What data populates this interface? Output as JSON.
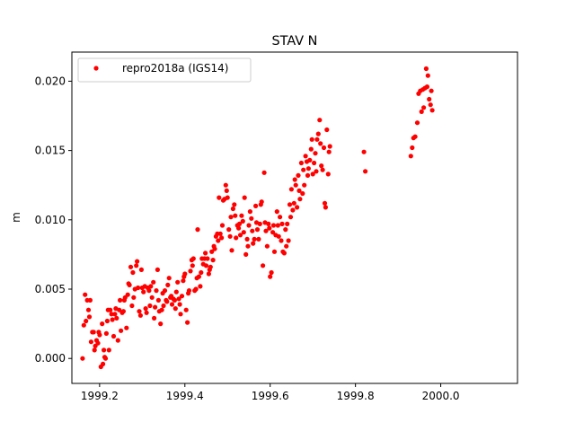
{
  "chart_data": {
    "type": "scatter",
    "title": "STAV N",
    "xlabel": "",
    "ylabel": "m",
    "xlim": [
      1999.135,
      2000.18
    ],
    "ylim": [
      -0.0018,
      0.0221
    ],
    "xticks": [
      1999.2,
      1999.4,
      1999.6,
      1999.8,
      2000.0
    ],
    "xtick_labels": [
      "1999.2",
      "1999.4",
      "1999.6",
      "1999.8",
      "2000.0"
    ],
    "yticks": [
      0.0,
      0.005,
      0.01,
      0.015,
      0.02
    ],
    "ytick_labels": [
      "0.000",
      "0.005",
      "0.010",
      "0.015",
      "0.020"
    ],
    "grid": false,
    "legend": {
      "position": "top-left"
    },
    "series": [
      {
        "name": "repro2018a (IGS14)",
        "color": "#ff0000",
        "marker": "circle",
        "points": [
          [
            1999.16,
            0.0
          ],
          [
            1999.163,
            0.0024
          ],
          [
            1999.166,
            0.0046
          ],
          [
            1999.168,
            0.0027
          ],
          [
            1999.171,
            0.0042
          ],
          [
            1999.174,
            0.0035
          ],
          [
            1999.176,
            0.003
          ],
          [
            1999.178,
            0.0042
          ],
          [
            1999.18,
            0.0012
          ],
          [
            1999.183,
            0.0019
          ],
          [
            1999.186,
            0.0019
          ],
          [
            1999.188,
            0.0006
          ],
          [
            1999.19,
            0.0009
          ],
          [
            1999.193,
            0.0013
          ],
          [
            1999.196,
            0.0011
          ],
          [
            1999.198,
            0.0019
          ],
          [
            1999.2,
            0.0017
          ],
          [
            1999.203,
            -0.0006
          ],
          [
            1999.206,
            0.0025
          ],
          [
            1999.208,
            -0.0004
          ],
          [
            1999.21,
            0.0006
          ],
          [
            1999.212,
            0.0001
          ],
          [
            1999.214,
            0.0
          ],
          [
            1999.216,
            0.0018
          ],
          [
            1999.218,
            0.0027
          ],
          [
            1999.22,
            0.0035
          ],
          [
            1999.222,
            0.0006
          ],
          [
            1999.225,
            0.0035
          ],
          [
            1999.228,
            0.0032
          ],
          [
            1999.23,
            0.0028
          ],
          [
            1999.233,
            0.0016
          ],
          [
            1999.236,
            0.0032
          ],
          [
            1999.238,
            0.0036
          ],
          [
            1999.24,
            0.0029
          ],
          [
            1999.243,
            0.0013
          ],
          [
            1999.246,
            0.0035
          ],
          [
            1999.248,
            0.0042
          ],
          [
            1999.25,
            0.002
          ],
          [
            1999.253,
            0.0033
          ],
          [
            1999.256,
            0.0034
          ],
          [
            1999.258,
            0.0042
          ],
          [
            1999.26,
            0.0044
          ],
          [
            1999.263,
            0.0022
          ],
          [
            1999.266,
            0.0046
          ],
          [
            1999.268,
            0.0054
          ],
          [
            1999.27,
            0.0053
          ],
          [
            1999.273,
            0.0066
          ],
          [
            1999.276,
            0.0038
          ],
          [
            1999.278,
            0.0062
          ],
          [
            1999.28,
            0.0044
          ],
          [
            1999.283,
            0.005
          ],
          [
            1999.286,
            0.0067
          ],
          [
            1999.288,
            0.007
          ],
          [
            1999.29,
            0.0051
          ],
          [
            1999.293,
            0.0034
          ],
          [
            1999.296,
            0.0031
          ],
          [
            1999.298,
            0.0064
          ],
          [
            1999.3,
            0.0051
          ],
          [
            1999.303,
            0.0048
          ],
          [
            1999.306,
            0.0052
          ],
          [
            1999.308,
            0.0036
          ],
          [
            1999.31,
            0.0033
          ],
          [
            1999.313,
            0.0051
          ],
          [
            1999.316,
            0.0049
          ],
          [
            1999.318,
            0.0038
          ],
          [
            1999.32,
            0.0052
          ],
          [
            1999.323,
            0.0044
          ],
          [
            1999.326,
            0.0055
          ],
          [
            1999.328,
            0.0029
          ],
          [
            1999.33,
            0.0037
          ],
          [
            1999.333,
            0.0049
          ],
          [
            1999.336,
            0.0064
          ],
          [
            1999.338,
            0.0042
          ],
          [
            1999.34,
            0.0034
          ],
          [
            1999.343,
            0.0025
          ],
          [
            1999.346,
            0.0035
          ],
          [
            1999.348,
            0.0047
          ],
          [
            1999.35,
            0.0038
          ],
          [
            1999.353,
            0.0049
          ],
          [
            1999.356,
            0.0042
          ],
          [
            1999.358,
            0.0041
          ],
          [
            1999.36,
            0.0053
          ],
          [
            1999.363,
            0.0058
          ],
          [
            1999.366,
            0.0044
          ],
          [
            1999.368,
            0.0045
          ],
          [
            1999.37,
            0.0039
          ],
          [
            1999.373,
            0.0043
          ],
          [
            1999.376,
            0.0042
          ],
          [
            1999.378,
            0.0036
          ],
          [
            1999.38,
            0.0048
          ],
          [
            1999.383,
            0.0055
          ],
          [
            1999.386,
            0.0043
          ],
          [
            1999.388,
            0.0039
          ],
          [
            1999.39,
            0.0032
          ],
          [
            1999.393,
            0.0045
          ],
          [
            1999.396,
            0.0056
          ],
          [
            1999.398,
            0.0059
          ],
          [
            1999.4,
            0.0061
          ],
          [
            1999.403,
            0.0035
          ],
          [
            1999.406,
            0.0026
          ],
          [
            1999.408,
            0.0047
          ],
          [
            1999.41,
            0.0049
          ],
          [
            1999.413,
            0.0063
          ],
          [
            1999.416,
            0.0071
          ],
          [
            1999.418,
            0.0067
          ],
          [
            1999.42,
            0.0072
          ],
          [
            1999.423,
            0.0049
          ],
          [
            1999.426,
            0.005
          ],
          [
            1999.428,
            0.0058
          ],
          [
            1999.43,
            0.0093
          ],
          [
            1999.433,
            0.0059
          ],
          [
            1999.436,
            0.0052
          ],
          [
            1999.438,
            0.0062
          ],
          [
            1999.44,
            0.0072
          ],
          [
            1999.443,
            0.0068
          ],
          [
            1999.446,
            0.0072
          ],
          [
            1999.448,
            0.0076
          ],
          [
            1999.45,
            0.0067
          ],
          [
            1999.453,
            0.0072
          ],
          [
            1999.456,
            0.0061
          ],
          [
            1999.458,
            0.0064
          ],
          [
            1999.46,
            0.0066
          ],
          [
            1999.463,
            0.0077
          ],
          [
            1999.466,
            0.0071
          ],
          [
            1999.468,
            0.0081
          ],
          [
            1999.47,
            0.0079
          ],
          [
            1999.473,
            0.0088
          ],
          [
            1999.476,
            0.009
          ],
          [
            1999.478,
            0.0085
          ],
          [
            1999.48,
            0.0116
          ],
          [
            1999.483,
            0.009
          ],
          [
            1999.486,
            0.0087
          ],
          [
            1999.488,
            0.0096
          ],
          [
            1999.49,
            0.0114
          ],
          [
            1999.493,
            0.0115
          ],
          [
            1999.496,
            0.0125
          ],
          [
            1999.498,
            0.0121
          ],
          [
            1999.5,
            0.0116
          ],
          [
            1999.503,
            0.0093
          ],
          [
            1999.506,
            0.0088
          ],
          [
            1999.508,
            0.0102
          ],
          [
            1999.51,
            0.0078
          ],
          [
            1999.513,
            0.0108
          ],
          [
            1999.516,
            0.0111
          ],
          [
            1999.518,
            0.0103
          ],
          [
            1999.52,
            0.0087
          ],
          [
            1999.523,
            0.0096
          ],
          [
            1999.526,
            0.0094
          ],
          [
            1999.528,
            0.0097
          ],
          [
            1999.53,
            0.0089
          ],
          [
            1999.533,
            0.0103
          ],
          [
            1999.536,
            0.0099
          ],
          [
            1999.538,
            0.0091
          ],
          [
            1999.54,
            0.0116
          ],
          [
            1999.543,
            0.0075
          ],
          [
            1999.546,
            0.0086
          ],
          [
            1999.548,
            0.0081
          ],
          [
            1999.55,
            0.0096
          ],
          [
            1999.553,
            0.0106
          ],
          [
            1999.556,
            0.0101
          ],
          [
            1999.558,
            0.0092
          ],
          [
            1999.56,
            0.0083
          ],
          [
            1999.563,
            0.0086
          ],
          [
            1999.566,
            0.011
          ],
          [
            1999.568,
            0.0098
          ],
          [
            1999.57,
            0.0093
          ],
          [
            1999.573,
            0.0086
          ],
          [
            1999.576,
            0.0097
          ],
          [
            1999.578,
            0.0111
          ],
          [
            1999.58,
            0.0113
          ],
          [
            1999.583,
            0.0067
          ],
          [
            1999.586,
            0.0134
          ],
          [
            1999.588,
            0.0098
          ],
          [
            1999.59,
            0.0092
          ],
          [
            1999.593,
            0.0081
          ],
          [
            1999.596,
            0.0097
          ],
          [
            1999.598,
            0.0094
          ],
          [
            1999.6,
            0.0059
          ],
          [
            1999.603,
            0.0062
          ],
          [
            1999.606,
            0.0091
          ],
          [
            1999.608,
            0.0096
          ],
          [
            1999.61,
            0.0077
          ],
          [
            1999.613,
            0.0089
          ],
          [
            1999.616,
            0.0106
          ],
          [
            1999.618,
            0.0096
          ],
          [
            1999.62,
            0.0088
          ],
          [
            1999.623,
            0.0102
          ],
          [
            1999.626,
            0.0085
          ],
          [
            1999.628,
            0.0097
          ],
          [
            1999.63,
            0.0077
          ],
          [
            1999.633,
            0.0076
          ],
          [
            1999.636,
            0.0093
          ],
          [
            1999.638,
            0.0081
          ],
          [
            1999.64,
            0.0097
          ],
          [
            1999.643,
            0.0085
          ],
          [
            1999.646,
            0.0111
          ],
          [
            1999.648,
            0.0102
          ],
          [
            1999.65,
            0.0122
          ],
          [
            1999.653,
            0.0107
          ],
          [
            1999.656,
            0.0112
          ],
          [
            1999.658,
            0.0129
          ],
          [
            1999.66,
            0.0125
          ],
          [
            1999.663,
            0.0109
          ],
          [
            1999.666,
            0.0132
          ],
          [
            1999.668,
            0.0121
          ],
          [
            1999.67,
            0.0115
          ],
          [
            1999.673,
            0.0141
          ],
          [
            1999.676,
            0.0119
          ],
          [
            1999.678,
            0.0136
          ],
          [
            1999.68,
            0.0125
          ],
          [
            1999.683,
            0.0146
          ],
          [
            1999.686,
            0.0142
          ],
          [
            1999.688,
            0.0132
          ],
          [
            1999.69,
            0.0137
          ],
          [
            1999.693,
            0.0143
          ],
          [
            1999.696,
            0.0151
          ],
          [
            1999.698,
            0.0158
          ],
          [
            1999.7,
            0.0133
          ],
          [
            1999.703,
            0.0141
          ],
          [
            1999.706,
            0.0148
          ],
          [
            1999.708,
            0.0135
          ],
          [
            1999.71,
            0.0158
          ],
          [
            1999.713,
            0.0162
          ],
          [
            1999.716,
            0.0172
          ],
          [
            1999.718,
            0.0155
          ],
          [
            1999.72,
            0.0139
          ],
          [
            1999.723,
            0.0136
          ],
          [
            1999.726,
            0.0152
          ],
          [
            1999.728,
            0.0112
          ],
          [
            1999.73,
            0.0109
          ],
          [
            1999.733,
            0.0165
          ],
          [
            1999.736,
            0.0133
          ],
          [
            1999.738,
            0.0149
          ],
          [
            1999.74,
            0.0153
          ],
          [
            1999.82,
            0.0149
          ],
          [
            1999.823,
            0.0135
          ],
          [
            1999.93,
            0.0146
          ],
          [
            1999.933,
            0.0152
          ],
          [
            1999.936,
            0.0159
          ],
          [
            1999.94,
            0.016
          ],
          [
            1999.945,
            0.017
          ],
          [
            1999.948,
            0.0191
          ],
          [
            1999.952,
            0.0193
          ],
          [
            1999.955,
            0.0178
          ],
          [
            1999.958,
            0.0194
          ],
          [
            1999.96,
            0.0181
          ],
          [
            1999.963,
            0.0195
          ],
          [
            1999.966,
            0.0209
          ],
          [
            1999.968,
            0.0196
          ],
          [
            1999.97,
            0.0204
          ],
          [
            1999.973,
            0.0187
          ],
          [
            1999.976,
            0.0183
          ],
          [
            1999.978,
            0.0193
          ],
          [
            1999.98,
            0.0179
          ]
        ]
      }
    ]
  }
}
